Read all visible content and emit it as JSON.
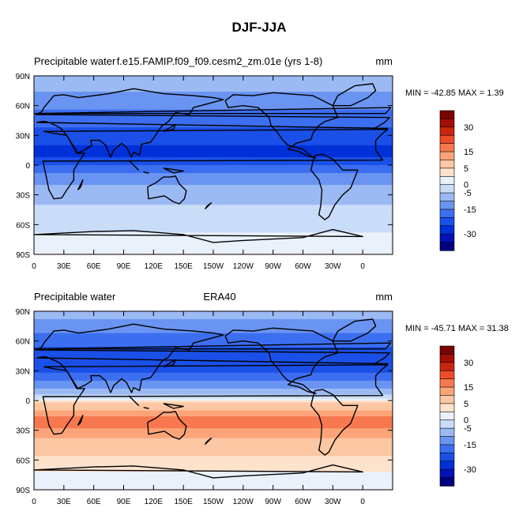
{
  "figure": {
    "title": "DJF-JJA"
  },
  "colorbar": {
    "levels": [
      -35,
      -30,
      -25,
      -20,
      -15,
      -10,
      -5,
      0,
      2.5,
      5,
      10,
      15,
      20,
      25,
      30,
      35
    ],
    "tick_labels": [
      "-30",
      "-15",
      "-5",
      "0",
      "5",
      "15",
      "30"
    ],
    "colors": [
      "#000080",
      "#0012b5",
      "#0030d8",
      "#1a50e8",
      "#3c6ef0",
      "#6a94f2",
      "#9bbaf4",
      "#c9dcf8",
      "#eaf1fb",
      "#fde2cc",
      "#fcc7a3",
      "#fba47a",
      "#f7784e",
      "#ec4c2a",
      "#c9260f",
      "#a10f06",
      "#780400"
    ]
  },
  "x_ticks": [
    "0",
    "30E",
    "60E",
    "90E",
    "120E",
    "150E",
    "150W",
    "120W",
    "90W",
    "60W",
    "30W",
    "0"
  ],
  "y_ticks": [
    "90N",
    "60N",
    "30N",
    "0",
    "30S",
    "60S",
    "90S"
  ],
  "panels": [
    {
      "left_label": "Precipitable water",
      "center_label": "f.e15.FAMIP.f09_f09.cesm2_zm.01e (yrs 1-8)",
      "units": "mm",
      "stats": "MIN = -42.85 MAX =   1.39"
    },
    {
      "left_label": "Precipitable water",
      "center_label": "ERA40",
      "units": "mm",
      "stats": "MIN = -45.71 MAX = 31.38"
    }
  ],
  "map_data": {
    "type": "filled_contour_map",
    "projection": "cylindrical_equidistant",
    "lon_range": [
      0,
      360
    ],
    "lat_range": [
      -90,
      90
    ],
    "fields": [
      {
        "description_units": "mm",
        "zonal_profile": [
          {
            "lat": 90,
            "value": -8
          },
          {
            "lat": 75,
            "value": -10
          },
          {
            "lat": 60,
            "value": -14
          },
          {
            "lat": 45,
            "value": -18
          },
          {
            "lat": 30,
            "value": -22
          },
          {
            "lat": 15,
            "value": -27
          },
          {
            "lat": 5,
            "value": -24
          },
          {
            "lat": 0,
            "value": -20
          },
          {
            "lat": -10,
            "value": -14
          },
          {
            "lat": -20,
            "value": -10
          },
          {
            "lat": -30,
            "value": -7
          },
          {
            "lat": -45,
            "value": -4
          },
          {
            "lat": -60,
            "value": -1
          },
          {
            "lat": -75,
            "value": 1
          },
          {
            "lat": -90,
            "value": 0
          }
        ]
      },
      {
        "description_units": "mm",
        "zonal_profile": [
          {
            "lat": 90,
            "value": -8
          },
          {
            "lat": 75,
            "value": -12
          },
          {
            "lat": 60,
            "value": -18
          },
          {
            "lat": 45,
            "value": -24
          },
          {
            "lat": 30,
            "value": -22
          },
          {
            "lat": 15,
            "value": -12
          },
          {
            "lat": 5,
            "value": -4
          },
          {
            "lat": 0,
            "value": 3
          },
          {
            "lat": -10,
            "value": 10
          },
          {
            "lat": -20,
            "value": 18
          },
          {
            "lat": -30,
            "value": 14
          },
          {
            "lat": -45,
            "value": 7
          },
          {
            "lat": -60,
            "value": 4
          },
          {
            "lat": -75,
            "value": 2
          },
          {
            "lat": -90,
            "value": 1
          }
        ]
      }
    ]
  }
}
